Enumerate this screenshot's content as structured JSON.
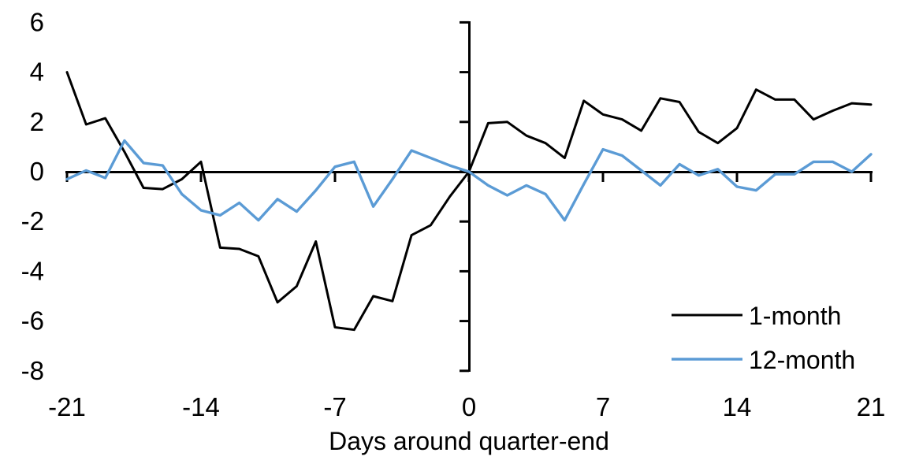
{
  "chart_data": {
    "type": "line",
    "title": "",
    "xlabel": "Days around quarter-end",
    "ylabel": "",
    "xlim": [
      -21,
      21
    ],
    "ylim": [
      -8,
      6
    ],
    "x_ticks": [
      -21,
      -14,
      -7,
      0,
      7,
      14,
      21
    ],
    "y_ticks": [
      6,
      4,
      2,
      0,
      -2,
      -4,
      -6,
      -8
    ],
    "grid": false,
    "legend_position": "inside-bottom-right",
    "axis_color": "#000000",
    "x": [
      -21,
      -20,
      -19,
      -18,
      -17,
      -16,
      -15,
      -14,
      -13,
      -12,
      -11,
      -10,
      -9,
      -8,
      -7,
      -6,
      -5,
      -4,
      -3,
      -2,
      -1,
      0,
      1,
      2,
      3,
      4,
      5,
      6,
      7,
      8,
      9,
      10,
      11,
      12,
      13,
      14,
      15,
      16,
      17,
      18,
      19,
      20,
      21
    ],
    "series": [
      {
        "name": "1-month",
        "color": "#000000",
        "line_width": 3,
        "values": [
          4.0,
          1.9,
          2.15,
          0.8,
          -0.65,
          -0.7,
          -0.3,
          0.4,
          -3.05,
          -3.1,
          -3.4,
          -5.25,
          -4.6,
          -2.8,
          -6.25,
          -6.35,
          -5.0,
          -5.2,
          -2.55,
          -2.15,
          -1.0,
          0.0,
          1.95,
          2.0,
          1.45,
          1.15,
          0.55,
          2.85,
          2.3,
          2.1,
          1.65,
          2.95,
          2.8,
          1.6,
          1.15,
          1.75,
          3.3,
          2.9,
          2.9,
          2.1,
          2.45,
          2.75,
          2.7
        ]
      },
      {
        "name": "12-month",
        "color": "#5B9BD5",
        "line_width": 3.4,
        "values": [
          -0.3,
          0.05,
          -0.25,
          1.25,
          0.35,
          0.25,
          -0.9,
          -1.55,
          -1.75,
          -1.25,
          -1.95,
          -1.1,
          -1.6,
          -0.75,
          0.2,
          0.4,
          -1.4,
          -0.3,
          0.85,
          0.55,
          0.25,
          0.0,
          -0.55,
          -0.95,
          -0.55,
          -0.9,
          -1.95,
          -0.5,
          0.9,
          0.65,
          0.05,
          -0.55,
          0.3,
          -0.15,
          0.1,
          -0.6,
          -0.75,
          -0.1,
          -0.1,
          0.4,
          0.4,
          0.0,
          0.7
        ]
      }
    ]
  }
}
